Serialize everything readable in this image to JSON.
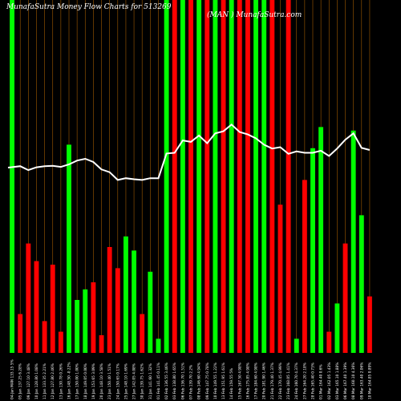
{
  "header": {
    "left": "MunafaSutra  Money Flow  Charts for 513269",
    "right": "(MAN         ) MunafaSutra.com"
  },
  "colors": {
    "background": "#000000",
    "up": "#00ff00",
    "down": "#ff0000",
    "line": "#ffffff",
    "grid": "#a05a00"
  },
  "chart_data": {
    "type": "bar",
    "title": "",
    "ylim": [
      0,
      100
    ],
    "line_ylim": [
      0,
      100
    ],
    "categories": [
      "04-Jan  MAN 133.15 5%",
      "05 Jan 137.25 6.28%",
      "09 Jan 127.10 3.48%",
      "10 Jan 128.80 1.08%",
      "11 Jan 133.35 2.21%",
      "12 Jan 127.80 2.46%",
      "13 Jan 130.78 0.26%",
      "16 Jan 148.50 -0.22%",
      "17 Jan 150.00 1.00%",
      "18 Jan 149.05 0.00%",
      "19 Jan 153.65 3.09%",
      "20 Jan 148.10 3.58%",
      "23 Jan 150.40 1.51%",
      "24 Jan 150.65 0.17%",
      "25 Jan 148.10 1.69%",
      "27 Jan 142.05 4.08%",
      "30 Jan 139.75 1.62%",
      "31 Jan 141.60 1.32%",
      "01 Feb 141.45 0.11%",
      "02 Feb 136.55 3.46%",
      "03 Feb 138.80 1.65%",
      "06 Feb 136.70 1.51%",
      "07 Feb 139.70 2.2%",
      "08 Feb 146.60 4.94%",
      "09 Feb 147.75 0.78%",
      "10 Feb 149.55 1.22%",
      "13 Feb 151.95 1.61%",
      "14 Feb 159.55 5%",
      "15 Feb 167.50 4.98%",
      "16 Feb 175.85 4.98%",
      "17 Feb 184.60 4.98%",
      "20 Feb 181.90 1.46%",
      "21 Feb 179.40 1.37%",
      "22 Feb 170.45 4.99%",
      "23 Feb 168.05 1.41%",
      "24 Feb 160.70 4.37%",
      "27 Feb 164.20 2.18%",
      "28 Feb 165.40 0.73%",
      "01 Mar 164.40 0.6%",
      "02 Mar 162.05 1.43%",
      "03 Mar 165.10 1.88%",
      "06 Mar 167.40 1.39%",
      "08 Mar 160.10 4.36%",
      "09 Mar 163.40 2.06%",
      "10 Mar 164.85 0.89%"
    ],
    "series": [
      {
        "values": [
          100,
          11,
          31,
          26,
          9,
          25,
          6,
          59,
          15,
          18,
          20,
          5,
          30,
          24,
          33,
          29,
          11,
          23,
          4,
          100,
          100,
          100,
          100,
          100,
          100,
          100,
          100,
          100,
          100,
          100,
          100,
          100,
          100,
          42,
          100,
          4,
          49,
          58,
          64,
          6,
          14,
          31,
          63,
          39,
          16
        ],
        "colors": [
          "up",
          "down",
          "down",
          "down",
          "down",
          "down",
          "down",
          "up",
          "up",
          "up",
          "down",
          "down",
          "down",
          "down",
          "up",
          "up",
          "down",
          "up",
          "up",
          "up",
          "down",
          "up",
          "down",
          "up",
          "down",
          "up",
          "down",
          "up",
          "down",
          "down",
          "up",
          "up",
          "down",
          "down",
          "down",
          "up",
          "down",
          "up",
          "up",
          "down",
          "up",
          "down",
          "up",
          "up",
          "down"
        ]
      },
      {
        "values": [
          52.5,
          52.9,
          51.8,
          52.6,
          52.9,
          53.0,
          52.7,
          53.4,
          54.5,
          55.0,
          54.1,
          52.0,
          51.2,
          49.0,
          49.5,
          49.2,
          49.0,
          49.5,
          49.5,
          56.5,
          56.7,
          60.2,
          59.8,
          61.6,
          59.4,
          62.2,
          62.8,
          64.7,
          62.6,
          61.9,
          60.8,
          59.0,
          57.9,
          58.3,
          56.4,
          57.1,
          56.7,
          56.7,
          57.3,
          55.8,
          57.9,
          60.4,
          62.2,
          58.1,
          57.5
        ]
      }
    ]
  }
}
